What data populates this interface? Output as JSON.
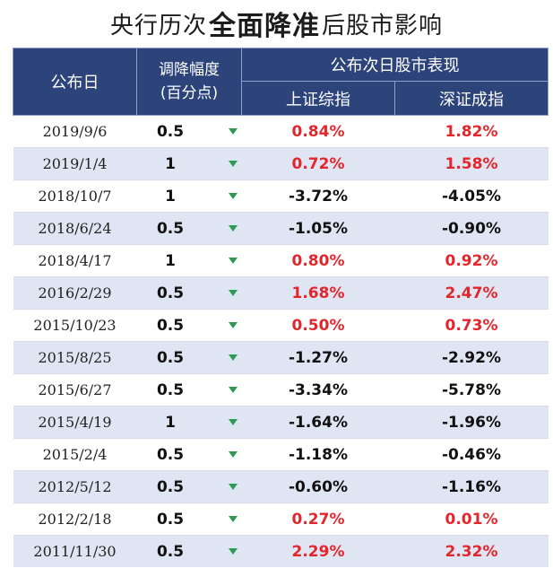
{
  "title": {
    "pre": "央行历次",
    "bold": "全面降准",
    "post": "后股市影响"
  },
  "header": {
    "date": "公布日",
    "cut_line1": "调降幅度",
    "cut_line2": "(百分点)",
    "group": "公布次日股市表现",
    "sh": "上证综指",
    "sz": "深证成指"
  },
  "colors": {
    "header_bg": "#2d447b",
    "up": "#e3262c",
    "down": "#111111",
    "arrow": "#2e9b55",
    "alt_row": "#dfe5f2"
  },
  "rows": [
    {
      "date": "2019/9/6",
      "cut": "0.5",
      "sh": "0.84%",
      "sz": "1.82%"
    },
    {
      "date": "2019/1/4",
      "cut": "1",
      "sh": "0.72%",
      "sz": "1.58%"
    },
    {
      "date": "2018/10/7",
      "cut": "1",
      "sh": "-3.72%",
      "sz": "-4.05%"
    },
    {
      "date": "2018/6/24",
      "cut": "0.5",
      "sh": "-1.05%",
      "sz": "-0.90%"
    },
    {
      "date": "2018/4/17",
      "cut": "1",
      "sh": "0.80%",
      "sz": "0.92%"
    },
    {
      "date": "2016/2/29",
      "cut": "0.5",
      "sh": "1.68%",
      "sz": "2.47%"
    },
    {
      "date": "2015/10/23",
      "cut": "0.5",
      "sh": "0.50%",
      "sz": "0.73%"
    },
    {
      "date": "2015/8/25",
      "cut": "0.5",
      "sh": "-1.27%",
      "sz": "-2.92%"
    },
    {
      "date": "2015/6/27",
      "cut": "0.5",
      "sh": "-3.34%",
      "sz": "-5.78%"
    },
    {
      "date": "2015/4/19",
      "cut": "1",
      "sh": "-1.64%",
      "sz": "-1.96%"
    },
    {
      "date": "2015/2/4",
      "cut": "0.5",
      "sh": "-1.18%",
      "sz": "-0.46%"
    },
    {
      "date": "2012/5/12",
      "cut": "0.5",
      "sh": "-0.60%",
      "sz": "-1.16%"
    },
    {
      "date": "2012/2/18",
      "cut": "0.5",
      "sh": "0.27%",
      "sz": "0.01%"
    },
    {
      "date": "2011/11/30",
      "cut": "0.5",
      "sh": "2.29%",
      "sz": "2.32%"
    }
  ]
}
